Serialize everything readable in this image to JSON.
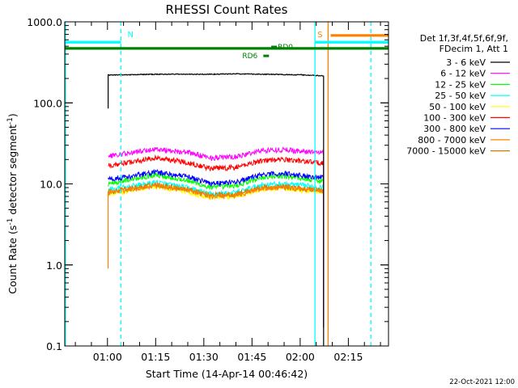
{
  "footer_date": "22-Oct-2021 12:00",
  "chart_data": {
    "type": "line",
    "title": "RHESSI Count Rates",
    "xlabel": "Start Time (14-Apr-14 00:46:42)",
    "ylabel_parts": {
      "main": "Count Rate (s",
      "sup": "-1",
      "rest": " detector segment",
      "sup2": "-1",
      "end": ")"
    },
    "y_scale": "log",
    "ylim": [
      0.1,
      1000
    ],
    "xlim_minutes": [
      46.7,
      147.5
    ],
    "x_ticks": [
      {
        "label": "01:00",
        "min": 60
      },
      {
        "label": "01:15",
        "min": 75
      },
      {
        "label": "01:30",
        "min": 90
      },
      {
        "label": "01:45",
        "min": 105
      },
      {
        "label": "02:00",
        "min": 120
      },
      {
        "label": "02:15",
        "min": 135
      }
    ],
    "y_ticks": [
      {
        "label": "0.1",
        "value": 0.1
      },
      {
        "label": "1.0",
        "value": 1
      },
      {
        "label": "10.0",
        "value": 10
      },
      {
        "label": "100.0",
        "value": 100
      },
      {
        "label": "1000.0",
        "value": 1000
      }
    ],
    "legend_title": [
      "Det 1f,3f,4f,5f,6f,9f,",
      "FDecim 1, Att 1"
    ],
    "data_start_min": 60.2,
    "data_end_min": 127.3,
    "series": [
      {
        "name": "3 - 6 keV",
        "color": "#000000",
        "profile": [
          [
            60.2,
            220
          ],
          [
            70,
            224
          ],
          [
            80,
            226
          ],
          [
            90,
            225
          ],
          [
            100,
            228
          ],
          [
            110,
            225
          ],
          [
            120,
            222
          ],
          [
            127.3,
            215
          ]
        ]
      },
      {
        "name": "6 - 12 keV",
        "color": "#ff00ff",
        "profile": [
          [
            60.2,
            22
          ],
          [
            65,
            23.5
          ],
          [
            75,
            27
          ],
          [
            85,
            24.5
          ],
          [
            92,
            21
          ],
          [
            100,
            21.5
          ],
          [
            108,
            26
          ],
          [
            115,
            26.5
          ],
          [
            122,
            25
          ],
          [
            127.3,
            24
          ]
        ]
      },
      {
        "name": "12 - 25 keV",
        "color": "#00ff00",
        "profile": [
          [
            60.2,
            10
          ],
          [
            65,
            11
          ],
          [
            75,
            13
          ],
          [
            85,
            11
          ],
          [
            92,
            9
          ],
          [
            100,
            9.5
          ],
          [
            108,
            12
          ],
          [
            115,
            12.5
          ],
          [
            122,
            11.5
          ],
          [
            127.3,
            11
          ]
        ]
      },
      {
        "name": "25 - 50 keV",
        "color": "#00ffff",
        "profile": [
          [
            60.2,
            8.5
          ],
          [
            65,
            9
          ],
          [
            75,
            10.5
          ],
          [
            85,
            9
          ],
          [
            92,
            7.5
          ],
          [
            100,
            7.8
          ],
          [
            108,
            9.8
          ],
          [
            115,
            10
          ],
          [
            122,
            9.5
          ],
          [
            127.3,
            9
          ]
        ]
      },
      {
        "name": "50 - 100 keV",
        "color": "#ffff00",
        "profile": [
          [
            60.2,
            7.5
          ],
          [
            65,
            8
          ],
          [
            75,
            9.3
          ],
          [
            85,
            8
          ],
          [
            92,
            6.8
          ],
          [
            100,
            7
          ],
          [
            108,
            8.6
          ],
          [
            115,
            8.8
          ],
          [
            122,
            8.3
          ],
          [
            127.3,
            8
          ]
        ]
      },
      {
        "name": "100 - 300 keV",
        "color": "#ff0000",
        "profile": [
          [
            60.2,
            17
          ],
          [
            65,
            18
          ],
          [
            75,
            21
          ],
          [
            85,
            18.5
          ],
          [
            92,
            15.5
          ],
          [
            100,
            16
          ],
          [
            108,
            19.5
          ],
          [
            115,
            20
          ],
          [
            122,
            19
          ],
          [
            127.3,
            18
          ]
        ]
      },
      {
        "name": "300 - 800 keV",
        "color": "#0000ff",
        "profile": [
          [
            60.2,
            11.5
          ],
          [
            65,
            12
          ],
          [
            75,
            14
          ],
          [
            85,
            12.3
          ],
          [
            92,
            10.2
          ],
          [
            100,
            10.5
          ],
          [
            108,
            13
          ],
          [
            115,
            13.5
          ],
          [
            122,
            12.5
          ],
          [
            127.3,
            12
          ]
        ]
      },
      {
        "name": "800 - 7000 keV",
        "color": "#ff8000",
        "profile": [
          [
            60.2,
            7.8
          ],
          [
            65,
            8.3
          ],
          [
            75,
            9.6
          ],
          [
            85,
            8.4
          ],
          [
            92,
            7
          ],
          [
            100,
            7.2
          ],
          [
            108,
            8.8
          ],
          [
            115,
            9
          ],
          [
            122,
            8.5
          ],
          [
            127.3,
            8.2
          ]
        ]
      },
      {
        "name": "7000 - 15000 keV",
        "color": "#c08000",
        "profile": [
          [
            60.2,
            8
          ],
          [
            65,
            8.5
          ],
          [
            75,
            9.8
          ],
          [
            85,
            8.6
          ],
          [
            92,
            7.3
          ],
          [
            100,
            7.5
          ],
          [
            108,
            9
          ],
          [
            115,
            9.2
          ],
          [
            122,
            8.7
          ],
          [
            127.3,
            8.4
          ]
        ]
      }
    ],
    "vertical_lines": [
      {
        "min": 46.9,
        "color": "#00ffff",
        "dashed": false
      },
      {
        "min": 64.2,
        "color": "#00ffff",
        "dashed": true
      },
      {
        "min": 124.6,
        "color": "#00ffff",
        "dashed": false
      },
      {
        "min": 128.7,
        "color": "#ff8000",
        "dashed": false
      },
      {
        "min": 142.0,
        "color": "#00ffff",
        "dashed": true
      }
    ],
    "flag_bars": [
      {
        "label": "N",
        "color": "#00ffff",
        "min0": 46.7,
        "min1": 64.2,
        "value": 560
      },
      {
        "label": "",
        "color": "#008000",
        "min0": 46.7,
        "min1": 147.5,
        "value": 470
      },
      {
        "label": "S",
        "color": "#00ffff",
        "min0": 124.6,
        "min1": 147.5,
        "value": 560
      },
      {
        "label": "",
        "color": "#ff8000",
        "min0": 129.5,
        "min1": 147.5,
        "value": 680
      }
    ],
    "attenuator_labels": [
      {
        "label": "RD0",
        "color": "#008000",
        "min": 113,
        "value": 490
      },
      {
        "label": "RD6",
        "color": "#008000",
        "min": 105,
        "value": 380
      }
    ]
  }
}
